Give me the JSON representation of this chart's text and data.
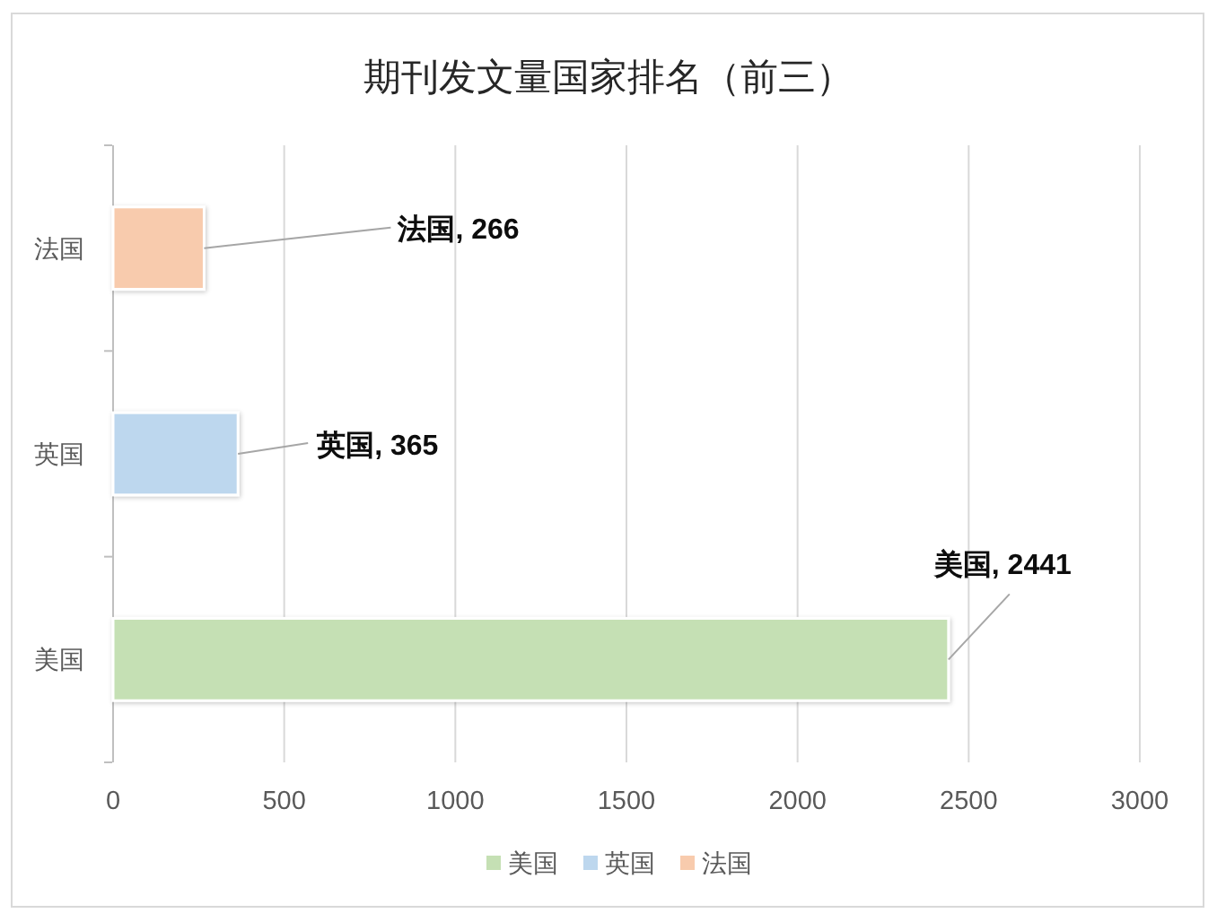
{
  "chart_data": {
    "type": "bar",
    "orientation": "horizontal",
    "stacked": true,
    "title": "期刊发文量国家排名（前三）",
    "categories": [
      "法国",
      "英国",
      "美国"
    ],
    "series": [
      {
        "name": "美国",
        "color": "#c5e0b4",
        "values": [
          null,
          null,
          2441
        ],
        "value_labels": [
          null,
          null,
          "美国, 2441"
        ]
      },
      {
        "name": "英国",
        "color": "#bdd7ee",
        "values": [
          null,
          365,
          null
        ],
        "value_labels": [
          null,
          "英国, 365",
          null
        ]
      },
      {
        "name": "法国",
        "color": "#f8cbad",
        "values": [
          266,
          null,
          null
        ],
        "value_labels": [
          "法国, 266",
          null,
          null
        ]
      }
    ],
    "xlim": [
      0,
      3000
    ],
    "xticks": [
      0,
      500,
      1000,
      1500,
      2000,
      2500,
      3000
    ],
    "grid": "x",
    "legend": "bottom"
  }
}
